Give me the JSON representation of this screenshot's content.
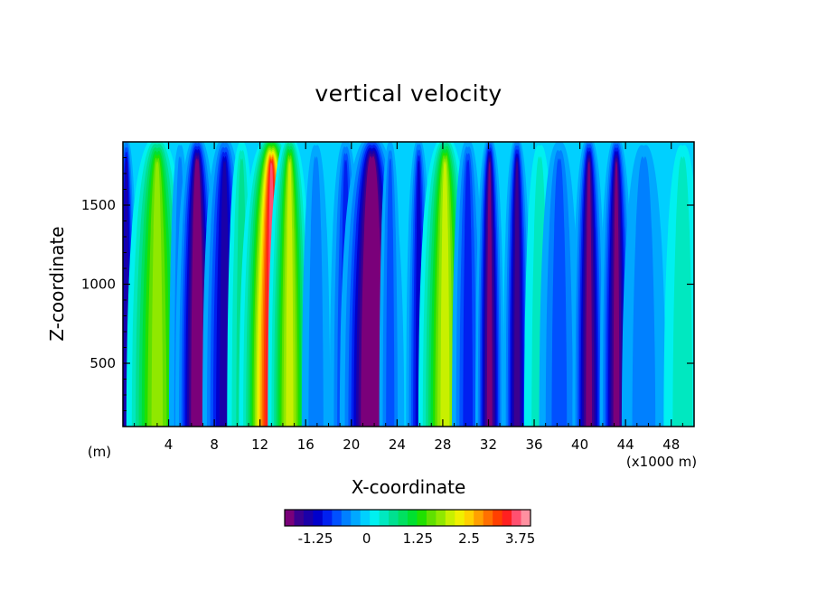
{
  "chart_data": {
    "type": "heatmap",
    "title": "vertical velocity",
    "xlabel": "X-coordinate",
    "ylabel": "Z-coordinate",
    "x_unit_left": "(m)",
    "x_unit_right": "(x1000 m)",
    "xlim": [
      0,
      50
    ],
    "ylim": [
      100,
      1900
    ],
    "x_ticks": [
      4,
      8,
      12,
      16,
      20,
      24,
      28,
      32,
      36,
      40,
      44,
      48
    ],
    "y_ticks": [
      500,
      1000,
      1500
    ],
    "colorbar": {
      "min": -2.0,
      "max": 4.0,
      "step": 0.25,
      "tick_values": [
        -1.25,
        0,
        1.25,
        2.5,
        3.75
      ],
      "tick_labels": [
        "-1.25",
        "0",
        "1.25",
        "2.5",
        "3.75"
      ],
      "colors": [
        "#7a007a",
        "#3b0090",
        "#1a00a8",
        "#0000cc",
        "#0020f0",
        "#0050ff",
        "#0080ff",
        "#00a8ff",
        "#00d0ff",
        "#00f0f0",
        "#00e8c0",
        "#00e090",
        "#00e060",
        "#00e030",
        "#20e000",
        "#60e000",
        "#90e800",
        "#c8f000",
        "#f0f000",
        "#ffd000",
        "#ffa000",
        "#ff7000",
        "#ff4000",
        "#ff2020",
        "#ff5070",
        "#ff90a0"
      ]
    },
    "columns": [
      {
        "x": 0.3,
        "w": 0.5,
        "v": -1.5
      },
      {
        "x": 3.0,
        "w": 1.3,
        "v": 2.2
      },
      {
        "x": 5.0,
        "w": 0.7,
        "v": -0.5
      },
      {
        "x": 6.5,
        "w": 0.9,
        "v": -2.1
      },
      {
        "x": 8.9,
        "w": 1.0,
        "v": -1.4
      },
      {
        "x": 10.4,
        "w": 0.8,
        "v": 0.8
      },
      {
        "x": 13.0,
        "w": 1.2,
        "v": 4.0
      },
      {
        "x": 14.6,
        "w": 0.9,
        "v": 2.3
      },
      {
        "x": 16.9,
        "w": 0.9,
        "v": -0.3
      },
      {
        "x": 19.5,
        "w": 0.8,
        "v": -1.0
      },
      {
        "x": 21.8,
        "w": 1.3,
        "v": -2.4
      },
      {
        "x": 23.4,
        "w": 0.6,
        "v": -0.7
      },
      {
        "x": 25.9,
        "w": 0.6,
        "v": -1.2
      },
      {
        "x": 28.2,
        "w": 1.1,
        "v": 2.3
      },
      {
        "x": 30.2,
        "w": 0.8,
        "v": -0.8
      },
      {
        "x": 32.1,
        "w": 0.6,
        "v": -1.8
      },
      {
        "x": 34.5,
        "w": 0.6,
        "v": -1.6
      },
      {
        "x": 36.5,
        "w": 1.0,
        "v": 0.5
      },
      {
        "x": 38.2,
        "w": 1.1,
        "v": -0.6
      },
      {
        "x": 40.8,
        "w": 0.7,
        "v": -1.8
      },
      {
        "x": 43.2,
        "w": 0.7,
        "v": -1.9
      },
      {
        "x": 45.6,
        "w": 1.4,
        "v": -0.5
      },
      {
        "x": 49.0,
        "w": 1.2,
        "v": 0.6
      }
    ]
  }
}
